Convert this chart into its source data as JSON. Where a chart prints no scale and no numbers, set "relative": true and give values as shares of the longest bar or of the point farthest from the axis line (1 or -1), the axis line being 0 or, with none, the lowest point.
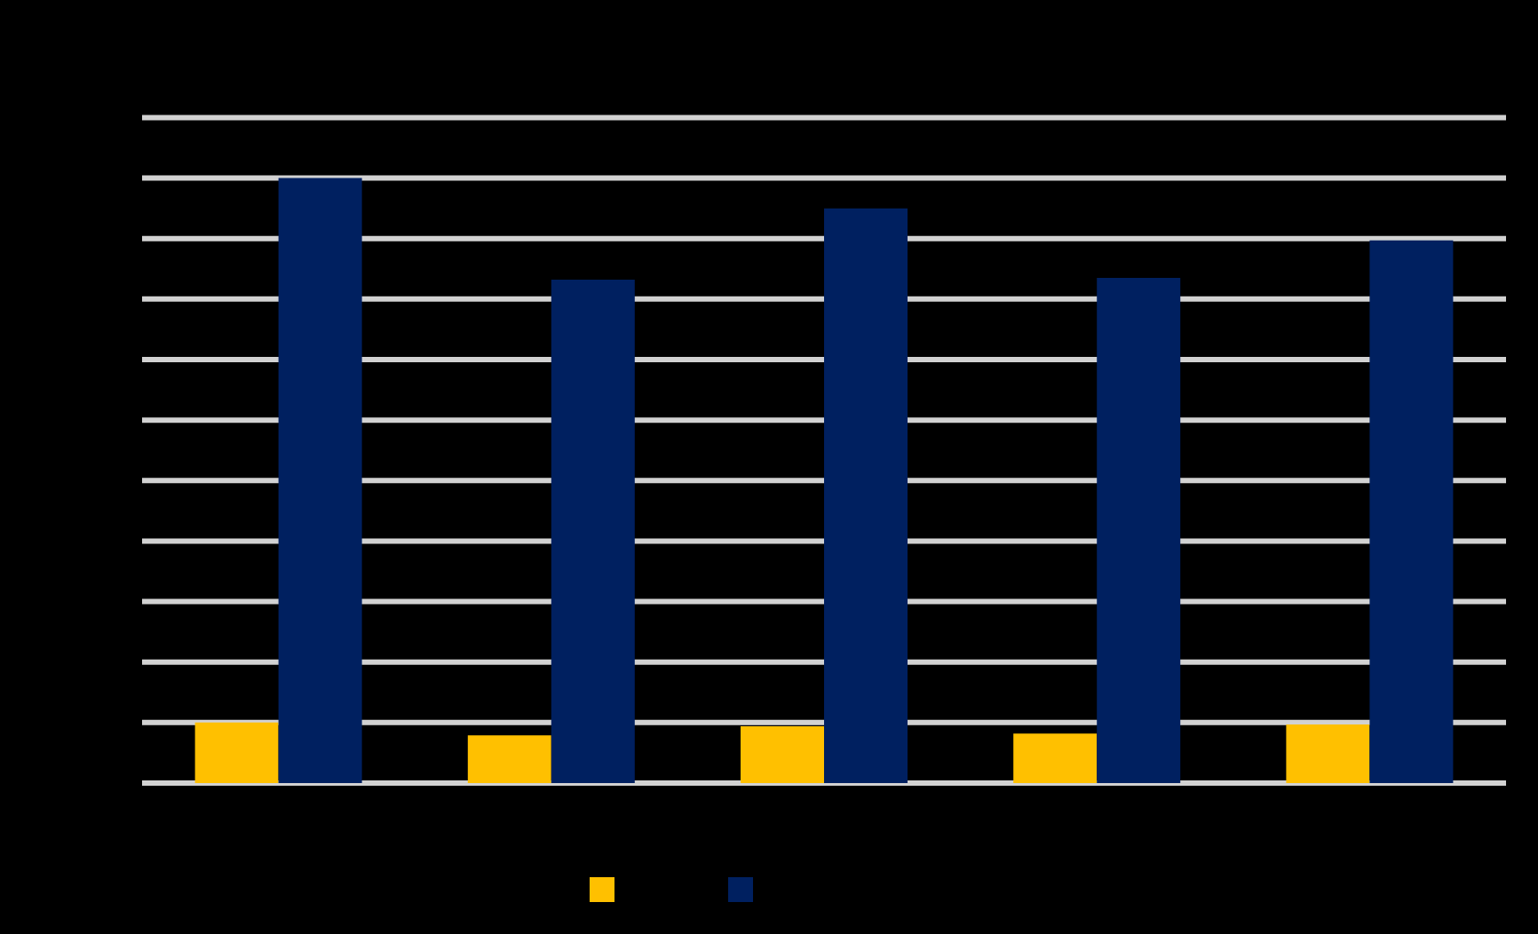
{
  "chart_data": {
    "type": "bar",
    "relative": true,
    "categories": [
      null,
      null,
      null,
      null,
      null
    ],
    "series": [
      {
        "color": "#ffc000",
        "values": [
          0.1,
          0.079,
          0.094,
          0.082,
          0.097
        ]
      },
      {
        "color": "#002060",
        "values": [
          1,
          0.832,
          0.95,
          0.835,
          0.897
        ]
      }
    ],
    "grid": "y"
  }
}
